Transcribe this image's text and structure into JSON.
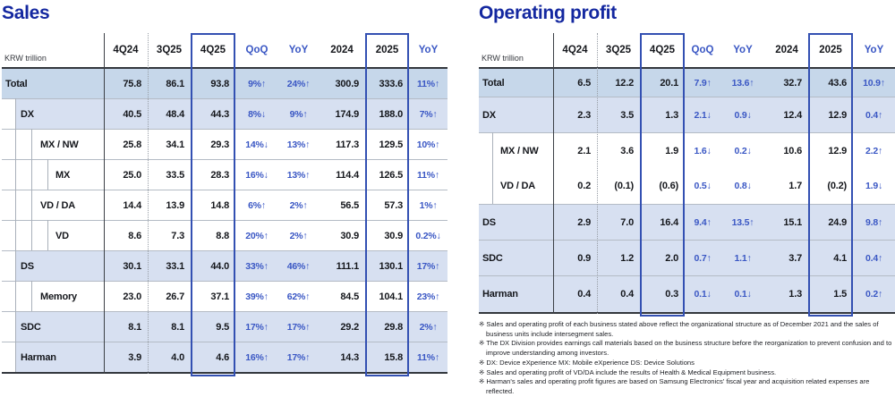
{
  "left_panel": {
    "title": "Sales",
    "unit_label": "KRW trillion",
    "columns": [
      "4Q24",
      "3Q25",
      "4Q25",
      "QoQ",
      "YoY",
      "2024",
      "2025",
      "YoY"
    ],
    "rows": [
      {
        "label": "Total",
        "level": 0,
        "shaded": true,
        "row_class": "lv0 total dark",
        "cells": [
          "75.8",
          "86.1",
          "93.8",
          "9%↑",
          "24%↑",
          "300.9",
          "333.6",
          "11%↑"
        ]
      },
      {
        "label": "DX",
        "level": 1,
        "shaded": true,
        "row_class": "lv1 shade inset g1",
        "cells": [
          "40.5",
          "48.4",
          "44.3",
          "8%↓",
          "9%↑",
          "174.9",
          "188.0",
          "7%↑"
        ]
      },
      {
        "label": "MX / NW",
        "level": 2,
        "shaded": false,
        "row_class": "lv2 g1 g2",
        "cells": [
          "25.8",
          "34.1",
          "29.3",
          "14%↓",
          "13%↑",
          "117.3",
          "129.5",
          "10%↑"
        ]
      },
      {
        "label": "MX",
        "level": 3,
        "shaded": false,
        "row_class": "lv3 g1 g2 g3",
        "cells": [
          "25.0",
          "33.5",
          "28.3",
          "16%↓",
          "13%↑",
          "114.4",
          "126.5",
          "11%↑"
        ]
      },
      {
        "label": "VD / DA",
        "level": 2,
        "shaded": false,
        "row_class": "lv2 g1 g2",
        "cells": [
          "14.4",
          "13.9",
          "14.8",
          "6%↑",
          "2%↑",
          "56.5",
          "57.3",
          "1%↑"
        ]
      },
      {
        "label": "VD",
        "level": 3,
        "shaded": false,
        "row_class": "lv3 g1 g2 g3",
        "cells": [
          "8.6",
          "7.3",
          "8.8",
          "20%↑",
          "2%↑",
          "30.9",
          "30.9",
          "0.2%↓"
        ]
      },
      {
        "label": "DS",
        "level": 1,
        "shaded": true,
        "row_class": "lv1 shade inset g1",
        "cells": [
          "30.1",
          "33.1",
          "44.0",
          "33%↑",
          "46%↑",
          "111.1",
          "130.1",
          "17%↑"
        ]
      },
      {
        "label": "Memory",
        "level": 2,
        "shaded": false,
        "row_class": "lv2 g1 g2",
        "cells": [
          "23.0",
          "26.7",
          "37.1",
          "39%↑",
          "62%↑",
          "84.5",
          "104.1",
          "23%↑"
        ]
      },
      {
        "label": "SDC",
        "level": 1,
        "shaded": true,
        "row_class": "lv1 shade inset g1",
        "cells": [
          "8.1",
          "8.1",
          "9.5",
          "17%↑",
          "17%↑",
          "29.2",
          "29.8",
          "2%↑"
        ]
      },
      {
        "label": "Harman",
        "level": 1,
        "shaded": true,
        "row_class": "lv1 shade inset g1",
        "cells": [
          "3.9",
          "4.0",
          "4.6",
          "16%↑",
          "17%↑",
          "14.3",
          "15.8",
          "11%↑"
        ]
      }
    ]
  },
  "right_panel": {
    "title": "Operating profit",
    "unit_label": "KRW trillion",
    "columns": [
      "4Q24",
      "3Q25",
      "4Q25",
      "QoQ",
      "YoY",
      "2024",
      "2025",
      "YoY"
    ],
    "rows": [
      {
        "label": "Total",
        "level": 0,
        "shaded": true,
        "row_class": "lv0 total dark",
        "cells": [
          "6.5",
          "12.2",
          "20.1",
          "7.9↑",
          "13.6↑",
          "32.7",
          "43.6",
          "10.9↑"
        ]
      },
      {
        "label": "DX",
        "level": 0,
        "shaded": true,
        "row_class": "lv0 shade",
        "cells": [
          "2.3",
          "3.5",
          "1.3",
          "2.1↓",
          "0.9↓",
          "12.4",
          "12.9",
          "0.4↑"
        ]
      },
      {
        "label": "MX / NW",
        "level": 2,
        "shaded": false,
        "row_class": "lv2 g1",
        "cells": [
          "2.1",
          "3.6",
          "1.9",
          "1.6↓",
          "0.2↓",
          "10.6",
          "12.9",
          "2.2↑"
        ]
      },
      {
        "label": "VD / DA",
        "level": 2,
        "shaded": false,
        "row_class": "lv2 g1 nosep",
        "cells": [
          "0.2",
          "(0.1)",
          "(0.6)",
          "0.5↓",
          "0.8↓",
          "1.7",
          "(0.2)",
          "1.9↓"
        ]
      },
      {
        "label": "DS",
        "level": 0,
        "shaded": true,
        "row_class": "lv0 shade",
        "cells": [
          "2.9",
          "7.0",
          "16.4",
          "9.4↑",
          "13.5↑",
          "15.1",
          "24.9",
          "9.8↑"
        ]
      },
      {
        "label": "SDC",
        "level": 0,
        "shaded": true,
        "row_class": "lv0 shade",
        "cells": [
          "0.9",
          "1.2",
          "2.0",
          "0.7↑",
          "1.1↑",
          "3.7",
          "4.1",
          "0.4↑"
        ]
      },
      {
        "label": "Harman",
        "level": 0,
        "shaded": true,
        "row_class": "lv0 shade",
        "cells": [
          "0.4",
          "0.4",
          "0.3",
          "0.1↓",
          "0.1↓",
          "1.3",
          "1.5",
          "0.2↑"
        ]
      }
    ]
  },
  "notes": {
    "bullet": "※",
    "items": [
      {
        "text": "Sales and operating profit of each business stated above reflect the organizational structure as of December 2021 and the sales of business units include intersegment sales."
      },
      {
        "text": "The DX Division provides earnings call materials based on the business structure before the reorganization to prevent confusion and to improve understanding among investors."
      },
      {
        "text": "DX: Device eXperience MX: Mobile eXperience DS: Device Solutions"
      },
      {
        "text": "Sales and operating profit of VD/DA include the results of Health & Medical Equipment business."
      },
      {
        "text": "Harman's sales and operating profit figures are based on Samsung Electronics' fiscal year and acquisition related expenses are reflected."
      }
    ]
  },
  "colors": {
    "title_blue": "#1428a0",
    "accent_blue": "#3a57c4",
    "highlight_box_border": "#3350b2",
    "row_shade": "#d7e0f1",
    "row_shade_dark": "#c6d7ea"
  }
}
